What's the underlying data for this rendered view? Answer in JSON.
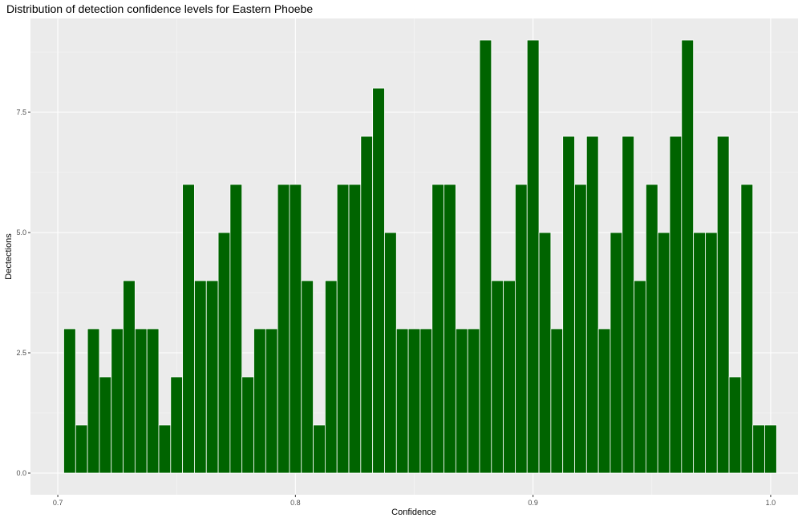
{
  "chart_data": {
    "type": "bar",
    "title": "Distribution of detection confidence levels for Eastern Phoebe",
    "xlabel": "Confidence",
    "ylabel": "Dectections",
    "xlim": [
      0.6885,
      1.0115
    ],
    "ylim": [
      -0.45,
      9.45
    ],
    "x_ticks": [
      0.7,
      0.8,
      0.9,
      1.0
    ],
    "x_tick_labels": [
      "0.7",
      "0.8",
      "0.9",
      "1.0"
    ],
    "y_ticks": [
      0,
      2.5,
      5,
      7.5
    ],
    "y_tick_labels": [
      "0.0",
      "2.5",
      "5.0",
      "7.5"
    ],
    "bin_width": 0.005,
    "bin_centers": [
      0.705,
      0.71,
      0.715,
      0.72,
      0.725,
      0.73,
      0.735,
      0.74,
      0.745,
      0.75,
      0.755,
      0.76,
      0.765,
      0.77,
      0.775,
      0.78,
      0.785,
      0.79,
      0.795,
      0.8,
      0.805,
      0.81,
      0.815,
      0.82,
      0.825,
      0.83,
      0.835,
      0.84,
      0.845,
      0.85,
      0.855,
      0.86,
      0.865,
      0.87,
      0.875,
      0.88,
      0.885,
      0.89,
      0.895,
      0.9,
      0.905,
      0.91,
      0.915,
      0.92,
      0.925,
      0.93,
      0.935,
      0.94,
      0.945,
      0.95,
      0.955,
      0.96,
      0.965,
      0.97,
      0.975,
      0.98,
      0.985,
      0.99,
      0.995,
      1.0
    ],
    "values": [
      3,
      1,
      3,
      2,
      3,
      4,
      3,
      3,
      1,
      2,
      6,
      4,
      4,
      5,
      6,
      2,
      3,
      3,
      6,
      6,
      4,
      1,
      4,
      6,
      6,
      7,
      8,
      5,
      3,
      3,
      3,
      6,
      6,
      3,
      3,
      9,
      4,
      4,
      6,
      9,
      5,
      3,
      7,
      6,
      7,
      3,
      5,
      7,
      4,
      6,
      5,
      7,
      9,
      5,
      5,
      7,
      2,
      6,
      1,
      1
    ],
    "bar_color": "#006400",
    "bar_outline": "#ffffff",
    "panel_background": "#ebebeb",
    "grid_major_color": "#ffffff",
    "grid": true,
    "legend": "none"
  }
}
